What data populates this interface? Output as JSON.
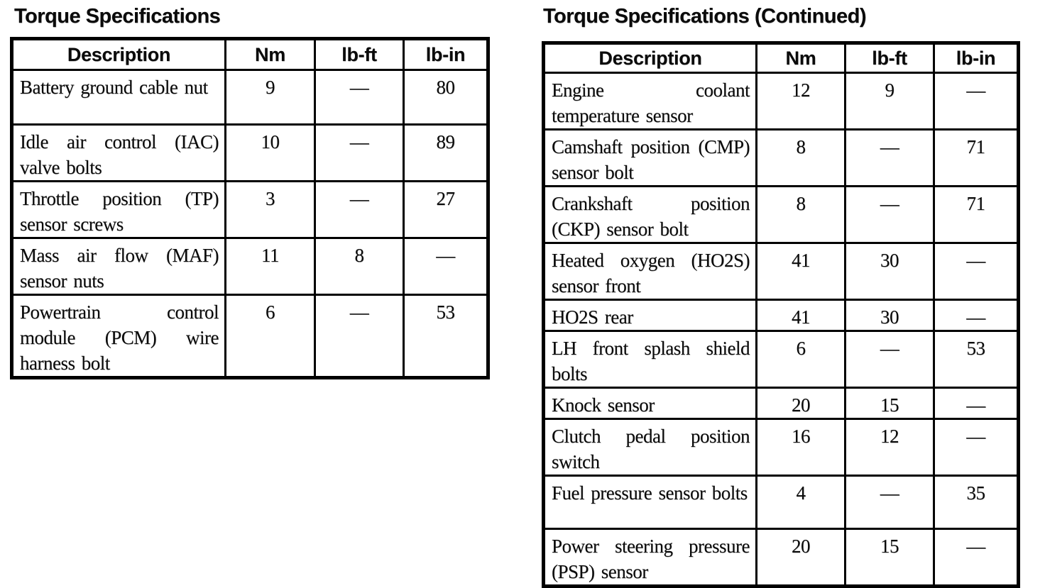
{
  "page": {
    "background_color": "#ffffff",
    "ink_color": "#0b0b0b"
  },
  "tables": [
    {
      "title": "Torque Specifications",
      "columns": [
        "Description",
        "Nm",
        "lb-ft",
        "lb-in"
      ],
      "rows": [
        [
          "Battery ground cable nut",
          "9",
          "—",
          "80"
        ],
        [
          "Idle air control (IAC) valve bolts",
          "10",
          "—",
          "89"
        ],
        [
          "Throttle position (TP) sensor screws",
          "3",
          "—",
          "27"
        ],
        [
          "Mass air flow (MAF) sensor nuts",
          "11",
          "8",
          "—"
        ],
        [
          "Powertrain control module (PCM) wire harness bolt",
          "6",
          "—",
          "53"
        ]
      ]
    },
    {
      "title": "Torque Specifications (Continued)",
      "columns": [
        "Description",
        "Nm",
        "lb-ft",
        "lb-in"
      ],
      "rows": [
        [
          "Engine coolant temperature sensor",
          "12",
          "9",
          "—"
        ],
        [
          "Camshaft position (CMP) sensor bolt",
          "8",
          "—",
          "71"
        ],
        [
          "Crankshaft position (CKP) sensor bolt",
          "8",
          "—",
          "71"
        ],
        [
          "Heated oxygen (HO2S) sensor front",
          "41",
          "30",
          "—"
        ],
        [
          "HO2S rear",
          "41",
          "30",
          "—"
        ],
        [
          "LH front splash shield bolts",
          "6",
          "—",
          "53"
        ],
        [
          "Knock sensor",
          "20",
          "15",
          "—"
        ],
        [
          "Clutch pedal position switch",
          "16",
          "12",
          "—"
        ],
        [
          "Fuel pressure sensor bolts",
          "4",
          "—",
          "35"
        ],
        [
          "Power steering pressure (PSP) sensor",
          "20",
          "15",
          "—"
        ]
      ]
    }
  ]
}
